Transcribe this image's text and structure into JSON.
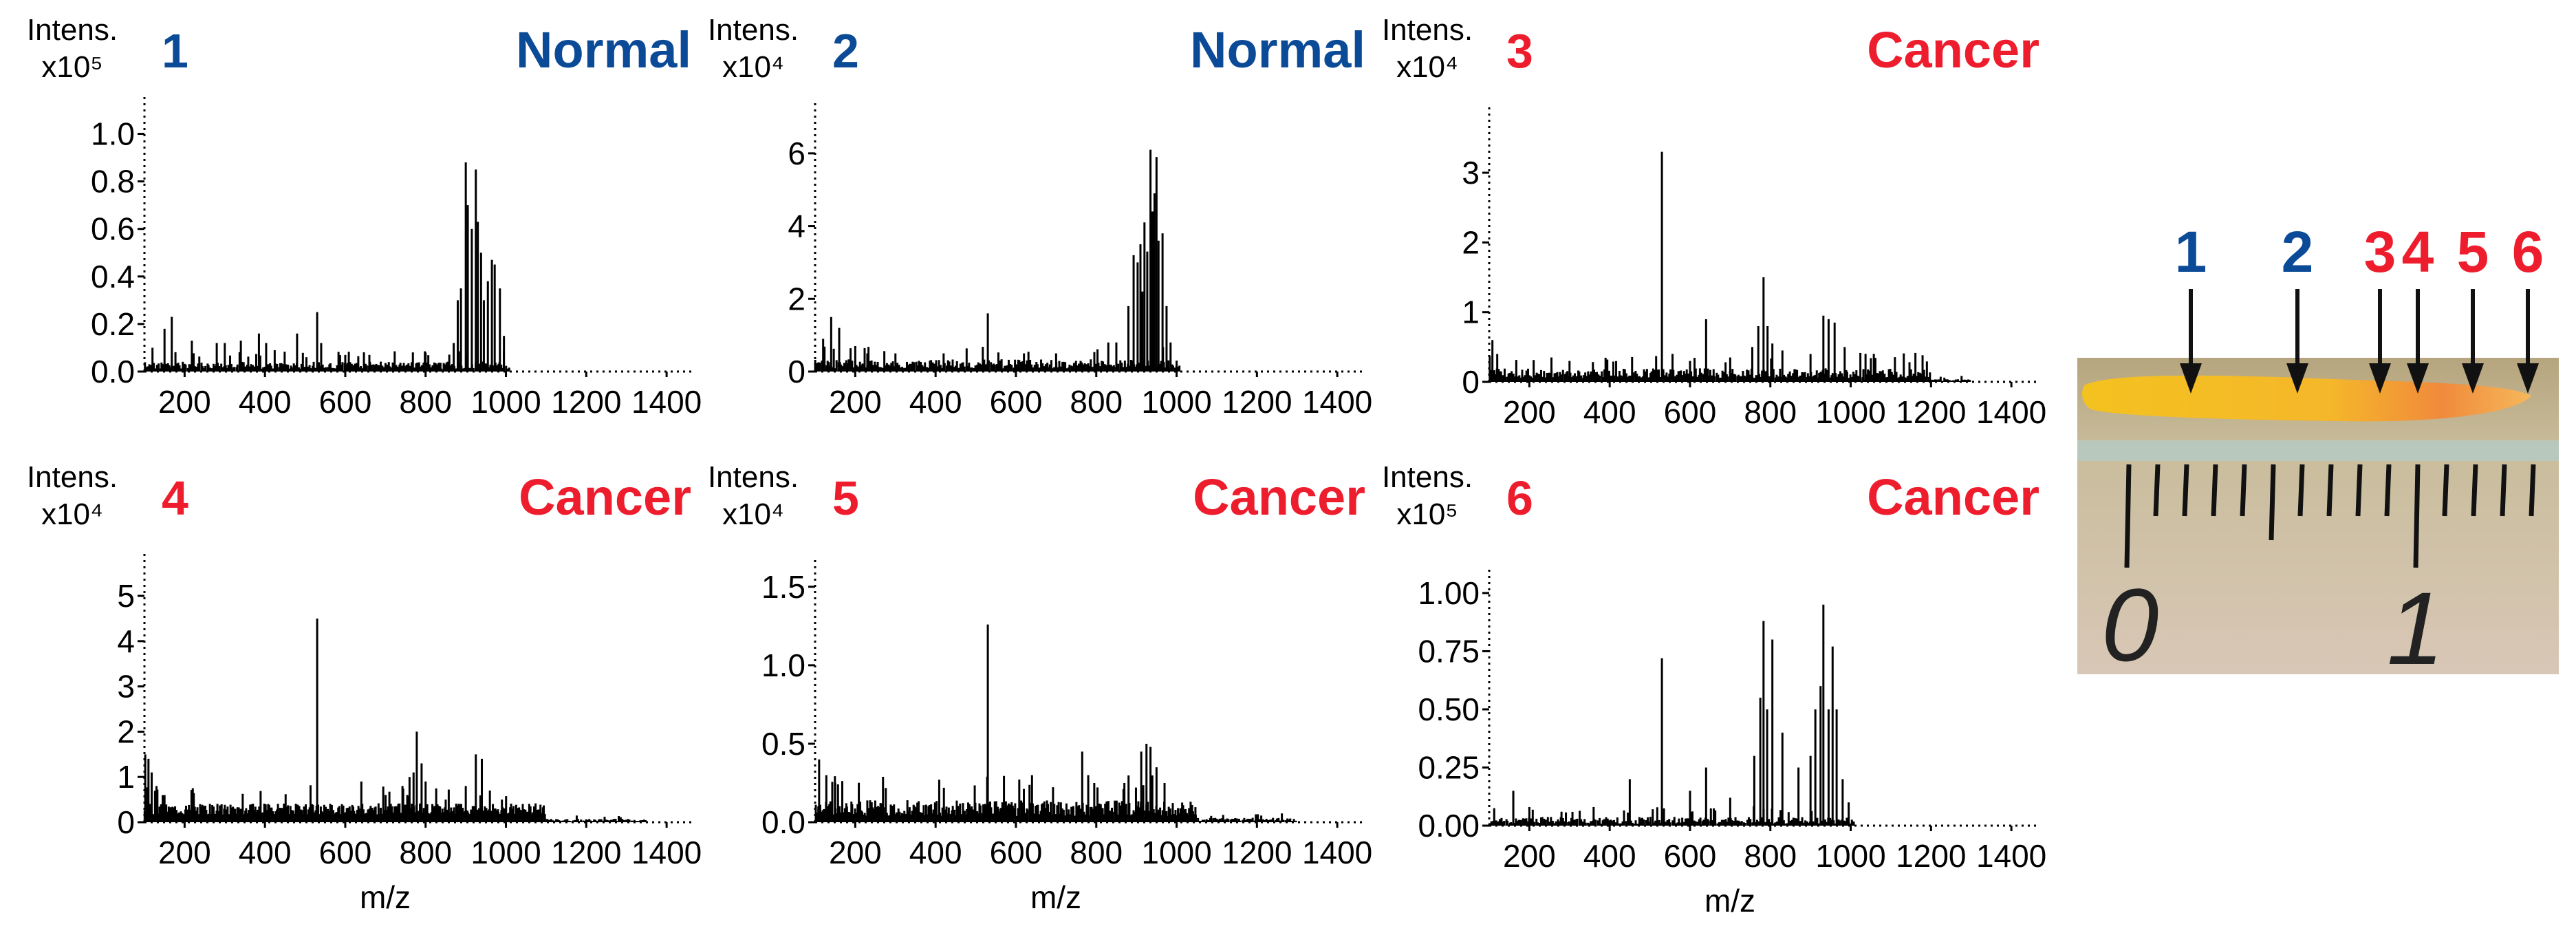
{
  "colors": {
    "normal": "#0b4a96",
    "cancer": "#ee1d2d",
    "axis": "#000000"
  },
  "photo": {
    "labels": [
      {
        "text": "1",
        "class": "normal"
      },
      {
        "text": "2",
        "class": "normal"
      },
      {
        "text": "3",
        "class": "cancer"
      },
      {
        "text": "4",
        "class": "cancer"
      },
      {
        "text": "5",
        "class": "cancer"
      },
      {
        "text": "6",
        "class": "cancer"
      }
    ],
    "ruler_digits": [
      "0",
      "1"
    ]
  },
  "chart_data": [
    {
      "id": "1",
      "type": "bar",
      "title": "Normal",
      "class": "normal",
      "ylabel_top": "Intens.",
      "ylabel_unit": "x10⁵",
      "xlabel": "",
      "xlim": [
        100,
        1470
      ],
      "ylim": [
        0,
        1.1
      ],
      "xticks": [
        200,
        400,
        600,
        800,
        1000,
        1200,
        1400
      ],
      "xtick_labels": [
        "200",
        "400",
        "600",
        "800",
        "1000",
        "1200",
        "1400"
      ],
      "yticks": [
        0.0,
        0.2,
        0.4,
        0.6,
        0.8,
        1.0
      ],
      "ytick_labels": [
        "0.0",
        "0.2",
        "0.4",
        "0.6",
        "0.8",
        "1.0"
      ],
      "peaks": [
        [
          120,
          0.1
        ],
        [
          150,
          0.18
        ],
        [
          168,
          0.23
        ],
        [
          218,
          0.13
        ],
        [
          280,
          0.12
        ],
        [
          300,
          0.12
        ],
        [
          340,
          0.13
        ],
        [
          385,
          0.16
        ],
        [
          403,
          0.12
        ],
        [
          480,
          0.16
        ],
        [
          530,
          0.25
        ],
        [
          540,
          0.12
        ],
        [
          600,
          0.07
        ],
        [
          660,
          0.07
        ],
        [
          800,
          0.08
        ],
        [
          870,
          0.12
        ],
        [
          880,
          0.3
        ],
        [
          888,
          0.35
        ],
        [
          900,
          0.88
        ],
        [
          905,
          0.7
        ],
        [
          915,
          0.6
        ],
        [
          925,
          0.85
        ],
        [
          930,
          0.63
        ],
        [
          938,
          0.5
        ],
        [
          945,
          0.3
        ],
        [
          955,
          0.38
        ],
        [
          965,
          0.47
        ],
        [
          972,
          0.45
        ],
        [
          985,
          0.35
        ],
        [
          995,
          0.15
        ]
      ],
      "noise": {
        "start": 100,
        "end": 1010,
        "base": 0.03,
        "amp": 0.03,
        "count": 240,
        "seed": 11
      }
    },
    {
      "id": "2",
      "type": "bar",
      "title": "Normal",
      "class": "normal",
      "ylabel_top": "Intens.",
      "ylabel_unit": "x10⁴",
      "xlabel": "",
      "xlim": [
        100,
        1470
      ],
      "ylim": [
        0,
        7
      ],
      "xticks": [
        200,
        400,
        600,
        800,
        1000,
        1200,
        1400
      ],
      "xtick_labels": [
        "200",
        "400",
        "600",
        "800",
        "1000",
        "1200",
        "1400"
      ],
      "yticks": [
        0,
        2,
        4,
        6
      ],
      "ytick_labels": [
        "0",
        "2",
        "4",
        "6"
      ],
      "peaks": [
        [
          120,
          0.9
        ],
        [
          140,
          1.5
        ],
        [
          160,
          1.2
        ],
        [
          200,
          0.7
        ],
        [
          230,
          0.5
        ],
        [
          300,
          0.5
        ],
        [
          420,
          0.5
        ],
        [
          530,
          1.6
        ],
        [
          620,
          0.5
        ],
        [
          700,
          0.5
        ],
        [
          830,
          0.8
        ],
        [
          850,
          0.8
        ],
        [
          880,
          1.8
        ],
        [
          893,
          3.2
        ],
        [
          903,
          3.0
        ],
        [
          910,
          3.5
        ],
        [
          915,
          2.2
        ],
        [
          920,
          4.1
        ],
        [
          927,
          3.3
        ],
        [
          935,
          6.1
        ],
        [
          940,
          4.4
        ],
        [
          945,
          4.9
        ],
        [
          950,
          5.9
        ],
        [
          955,
          3.6
        ],
        [
          965,
          3.8
        ],
        [
          975,
          1.8
        ],
        [
          985,
          0.8
        ],
        [
          1000,
          0.3
        ]
      ],
      "noise": {
        "start": 100,
        "end": 1010,
        "base": 0.22,
        "amp": 0.25,
        "count": 240,
        "seed": 23
      }
    },
    {
      "id": "3",
      "type": "bar",
      "title": "Cancer",
      "class": "cancer",
      "ylabel_top": "Intens.",
      "ylabel_unit": "x10⁴",
      "xlabel": "",
      "xlim": [
        100,
        1470
      ],
      "ylim": [
        0,
        3.8
      ],
      "xticks": [
        200,
        400,
        600,
        800,
        1000,
        1200,
        1400
      ],
      "xtick_labels": [
        "200",
        "400",
        "600",
        "800",
        "1000",
        "1200",
        "1400"
      ],
      "yticks": [
        0,
        1,
        2,
        3
      ],
      "ytick_labels": [
        "0",
        "1",
        "2",
        "3"
      ],
      "peaks": [
        [
          108,
          0.6
        ],
        [
          120,
          0.4
        ],
        [
          255,
          0.35
        ],
        [
          300,
          0.3
        ],
        [
          530,
          3.3
        ],
        [
          600,
          0.3
        ],
        [
          640,
          0.9
        ],
        [
          700,
          0.35
        ],
        [
          755,
          0.5
        ],
        [
          770,
          0.8
        ],
        [
          783,
          1.5
        ],
        [
          793,
          0.8
        ],
        [
          805,
          0.55
        ],
        [
          830,
          0.45
        ],
        [
          900,
          0.4
        ],
        [
          932,
          0.95
        ],
        [
          945,
          0.9
        ],
        [
          960,
          0.85
        ],
        [
          985,
          0.5
        ]
      ],
      "noise": {
        "start": 100,
        "end": 1200,
        "base": 0.14,
        "amp": 0.14,
        "count": 300,
        "seed": 37
      },
      "tail": {
        "start": 1000,
        "end": 1300,
        "base": 0.03,
        "amp": 0.03,
        "count": 70
      }
    },
    {
      "id": "4",
      "type": "bar",
      "title": "Cancer",
      "class": "cancer",
      "ylabel_top": "Intens.",
      "ylabel_unit": "x10⁴",
      "xlabel": "m/z",
      "xlim": [
        100,
        1470
      ],
      "ylim": [
        0,
        5.7
      ],
      "xticks": [
        200,
        400,
        600,
        800,
        1000,
        1200,
        1400
      ],
      "xtick_labels": [
        "200",
        "400",
        "600",
        "800",
        "1000",
        "1200",
        "1400"
      ],
      "yticks": [
        0,
        1,
        2,
        3,
        4,
        5
      ],
      "ytick_labels": [
        "0",
        "1",
        "2",
        "3",
        "4",
        "5"
      ],
      "peaks": [
        [
          102,
          1.5
        ],
        [
          110,
          1.4
        ],
        [
          118,
          1.1
        ],
        [
          130,
          0.8
        ],
        [
          150,
          0.6
        ],
        [
          530,
          4.5
        ],
        [
          640,
          0.9
        ],
        [
          760,
          1.0
        ],
        [
          770,
          1.1
        ],
        [
          778,
          2.0
        ],
        [
          790,
          1.3
        ],
        [
          800,
          0.9
        ],
        [
          850,
          0.5
        ],
        [
          900,
          0.8
        ],
        [
          925,
          1.5
        ],
        [
          940,
          1.4
        ],
        [
          960,
          0.7
        ],
        [
          990,
          0.5
        ]
      ],
      "noise": {
        "start": 100,
        "end": 1100,
        "base": 0.42,
        "amp": 0.25,
        "count": 320,
        "seed": 51
      },
      "tail": {
        "start": 1000,
        "end": 1350,
        "base": 0.06,
        "amp": 0.05,
        "count": 90
      }
    },
    {
      "id": "5",
      "type": "bar",
      "title": "Cancer",
      "class": "cancer",
      "ylabel_top": "Intens.",
      "ylabel_unit": "x10⁴",
      "xlabel": "m/z",
      "xlim": [
        100,
        1470
      ],
      "ylim": [
        0,
        1.6
      ],
      "xticks": [
        200,
        400,
        600,
        800,
        1000,
        1200,
        1400
      ],
      "xtick_labels": [
        "200",
        "400",
        "600",
        "800",
        "1000",
        "1200",
        "1400"
      ],
      "yticks": [
        0.0,
        0.5,
        1.0,
        1.5
      ],
      "ytick_labels": [
        "0.0",
        "0.5",
        "1.0",
        "1.5"
      ],
      "peaks": [
        [
          110,
          0.4
        ],
        [
          128,
          0.3
        ],
        [
          150,
          0.25
        ],
        [
          530,
          1.26
        ],
        [
          640,
          0.3
        ],
        [
          765,
          0.45
        ],
        [
          780,
          0.3
        ],
        [
          795,
          0.25
        ],
        [
          870,
          0.25
        ],
        [
          912,
          0.45
        ],
        [
          925,
          0.5
        ],
        [
          935,
          0.48
        ],
        [
          950,
          0.35
        ],
        [
          970,
          0.25
        ]
      ],
      "noise": {
        "start": 100,
        "end": 1050,
        "base": 0.1,
        "amp": 0.1,
        "count": 300,
        "seed": 67
      },
      "tail": {
        "start": 1000,
        "end": 1300,
        "base": 0.02,
        "amp": 0.02,
        "count": 70
      }
    },
    {
      "id": "6",
      "type": "bar",
      "title": "Cancer",
      "class": "cancer",
      "ylabel_top": "Intens.",
      "ylabel_unit": "x10⁵",
      "xlabel": "m/z",
      "xlim": [
        100,
        1470
      ],
      "ylim": [
        0,
        1.05
      ],
      "xticks": [
        200,
        400,
        600,
        800,
        1000,
        1200,
        1400
      ],
      "xtick_labels": [
        "200",
        "400",
        "600",
        "800",
        "1000",
        "1200",
        "1400"
      ],
      "yticks": [
        0.0,
        0.25,
        0.5,
        0.75,
        1.0
      ],
      "ytick_labels": [
        "0.00",
        "0.25",
        "0.50",
        "0.75",
        "1.00"
      ],
      "peaks": [
        [
          160,
          0.15
        ],
        [
          200,
          0.08
        ],
        [
          280,
          0.06
        ],
        [
          360,
          0.08
        ],
        [
          450,
          0.2
        ],
        [
          530,
          0.72
        ],
        [
          600,
          0.15
        ],
        [
          640,
          0.25
        ],
        [
          700,
          0.12
        ],
        [
          760,
          0.3
        ],
        [
          775,
          0.55
        ],
        [
          783,
          0.88
        ],
        [
          792,
          0.5
        ],
        [
          805,
          0.8
        ],
        [
          830,
          0.4
        ],
        [
          870,
          0.25
        ],
        [
          900,
          0.3
        ],
        [
          912,
          0.5
        ],
        [
          925,
          0.6
        ],
        [
          932,
          0.95
        ],
        [
          945,
          0.5
        ],
        [
          955,
          0.77
        ],
        [
          965,
          0.5
        ],
        [
          980,
          0.2
        ],
        [
          995,
          0.1
        ]
      ],
      "noise": {
        "start": 100,
        "end": 1010,
        "base": 0.02,
        "amp": 0.03,
        "count": 220,
        "seed": 83
      }
    }
  ]
}
